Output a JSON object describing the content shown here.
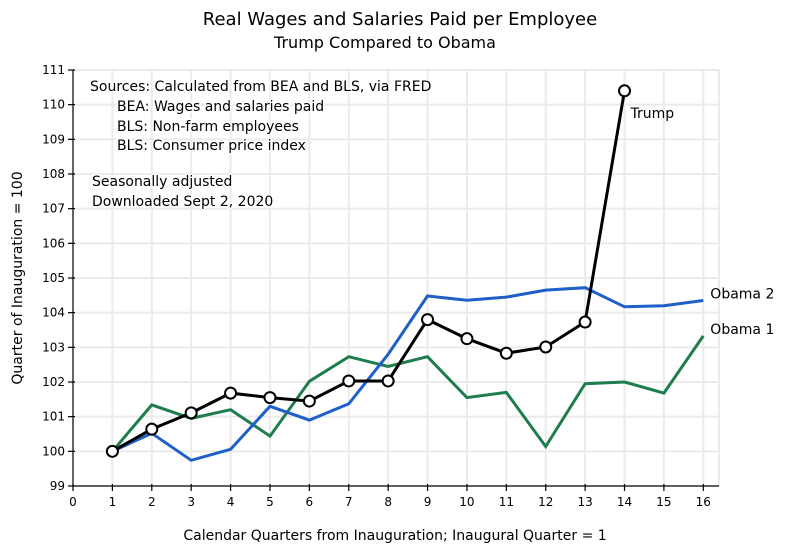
{
  "chart_data": {
    "type": "line",
    "title": "Real Wages and Salaries Paid per Employee",
    "subtitle": "Trump Compared to Obama",
    "xlabel": "Calendar Quarters from Inauguration; Inaugural Quarter = 1",
    "ylabel": "Quarter of Inauguration = 100",
    "xlim": [
      0,
      16.4
    ],
    "ylim": [
      99,
      111
    ],
    "xticks": [
      0,
      1,
      2,
      3,
      4,
      5,
      6,
      7,
      8,
      9,
      10,
      11,
      12,
      13,
      14,
      15,
      16
    ],
    "yticks": [
      99,
      100,
      101,
      102,
      103,
      104,
      105,
      106,
      107,
      108,
      109,
      110,
      111
    ],
    "grid": true,
    "legend": "inline labels at line ends",
    "annotations": [
      "Sources:  Calculated from BEA and BLS, via FRED",
      "BEA:  Wages and salaries paid",
      "BLS:  Non-farm employees",
      "BLS:  Consumer price index",
      "Seasonally adjusted",
      "Downloaded Sept 2, 2020"
    ],
    "series": [
      {
        "name": "Obama 1",
        "label": "Obama 1",
        "color": "#1e7d4c",
        "markers": false,
        "x": [
          1,
          2,
          3,
          4,
          5,
          6,
          7,
          8,
          9,
          10,
          11,
          12,
          13,
          14,
          15,
          16
        ],
        "values": [
          100.0,
          101.34,
          100.95,
          101.2,
          100.44,
          102.02,
          102.73,
          102.45,
          102.73,
          101.55,
          101.7,
          100.14,
          101.95,
          102.0,
          101.68,
          103.33
        ]
      },
      {
        "name": "Obama 2",
        "label": "Obama 2",
        "color": "#1f5fc8",
        "markers": false,
        "x": [
          1,
          2,
          3,
          4,
          5,
          6,
          7,
          8,
          9,
          10,
          11,
          12,
          13,
          14,
          15,
          16
        ],
        "values": [
          100.0,
          100.52,
          99.74,
          100.06,
          101.3,
          100.9,
          101.37,
          102.8,
          104.48,
          104.36,
          104.45,
          104.65,
          104.72,
          104.17,
          104.2,
          104.35
        ]
      },
      {
        "name": "Trump",
        "label": "Trump",
        "color": "#000000",
        "markers": true,
        "x": [
          1,
          2,
          3,
          4,
          5,
          6,
          7,
          8,
          9,
          10,
          11,
          12,
          13,
          14
        ],
        "values": [
          100.0,
          100.64,
          101.11,
          101.68,
          101.55,
          101.45,
          102.03,
          102.03,
          103.8,
          103.25,
          102.83,
          103.01,
          103.73,
          110.4
        ]
      }
    ]
  }
}
